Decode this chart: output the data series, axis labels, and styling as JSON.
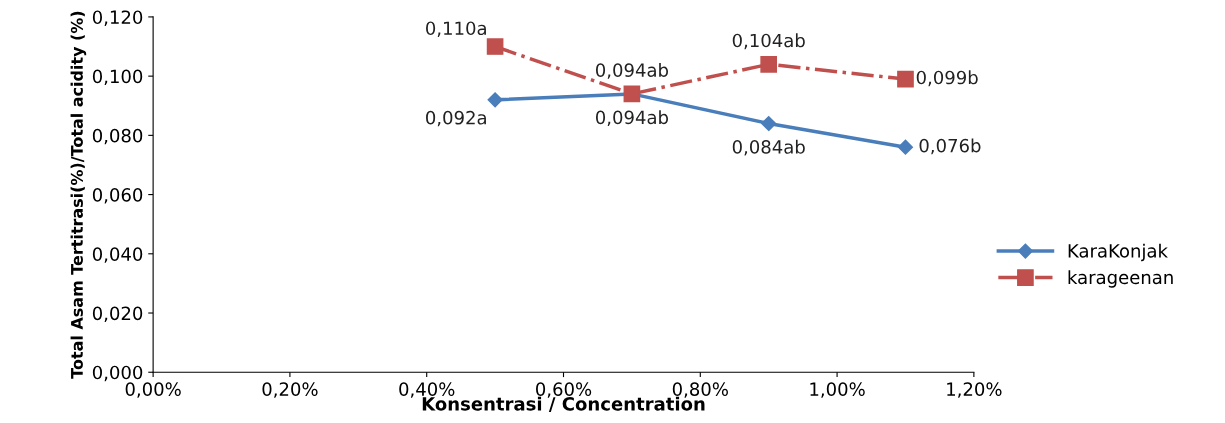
{
  "chart_data": {
    "type": "line",
    "xlabel": "Konsentrasi / Concentration",
    "ylabel": "Total Asam Tertitrasi(%)/Total acidity (%)",
    "x": [
      0.5,
      0.7,
      0.9,
      1.1
    ],
    "series": [
      {
        "name": "KaraKonjak",
        "color": "#4a7ebb",
        "values": [
          0.092,
          0.094,
          0.084,
          0.076
        ],
        "value_labels": [
          "0,092a",
          "0,094ab",
          "0,084ab",
          "0,076b"
        ],
        "marker": "diamond",
        "line_style": "solid"
      },
      {
        "name": "karageenan",
        "color": "#c0504d",
        "values": [
          0.11,
          0.094,
          0.104,
          0.099
        ],
        "value_labels": [
          "0,110a",
          "0,094ab",
          "0,104ab",
          "0,099b"
        ],
        "marker": "square",
        "line_style": "dashed"
      }
    ],
    "xlim": [
      0,
      1.2
    ],
    "xticks": [
      {
        "value": 0,
        "label": "0,00%"
      },
      {
        "value": 0.2,
        "label": "0,20%"
      },
      {
        "value": 0.4,
        "label": "0,40%"
      },
      {
        "value": 0.6,
        "label": "0,60%"
      },
      {
        "value": 0.8,
        "label": "0,80%"
      },
      {
        "value": 1.0,
        "label": "1,00%"
      },
      {
        "value": 1.2,
        "label": "1,20%"
      }
    ],
    "ylim": [
      0,
      0.12
    ],
    "yticks": [
      {
        "value": 0,
        "label": "0,000"
      },
      {
        "value": 0.02,
        "label": "0,020"
      },
      {
        "value": 0.04,
        "label": "0,040"
      },
      {
        "value": 0.06,
        "label": "0,060"
      },
      {
        "value": 0.08,
        "label": "0,080"
      },
      {
        "value": 0.1,
        "label": "0,100"
      },
      {
        "value": 0.12,
        "label": "0,120"
      }
    ],
    "grid": false,
    "legend": "right"
  }
}
